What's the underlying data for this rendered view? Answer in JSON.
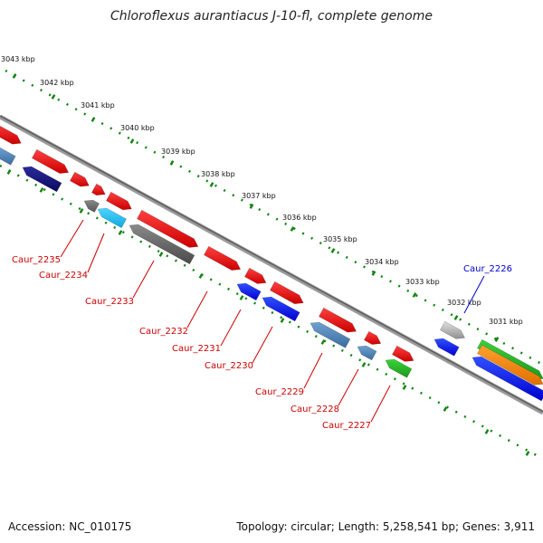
{
  "title": "Chloroflexus aurantiacus J-10-fl, complete genome",
  "footer": {
    "accession": "Accession: NC_010175",
    "topology": "Topology: circular; Length: 5,258,541 bp; Genes: 3,911"
  },
  "colors": {
    "backbone": "#7a7a7a",
    "tick": "#128512",
    "red_label": "#cc0000",
    "blue_label": "#0000cc"
  },
  "scale_labels": [
    "3043 kbp",
    "3042 kbp",
    "3041 kbp",
    "3040 kbp",
    "3039 kbp",
    "3038 kbp",
    "3037 kbp",
    "3036 kbp",
    "3035 kbp",
    "3034 kbp",
    "3033 kbp",
    "3032 kbp",
    "3031 kbp"
  ],
  "gene_labels": [
    {
      "text": "Caur_2235",
      "color": "#cc0000"
    },
    {
      "text": "Caur_2234",
      "color": "#cc0000"
    },
    {
      "text": "Caur_2233",
      "color": "#cc0000"
    },
    {
      "text": "Caur_2232",
      "color": "#cc0000"
    },
    {
      "text": "Caur_2231",
      "color": "#cc0000"
    },
    {
      "text": "Caur_2230",
      "color": "#cc0000"
    },
    {
      "text": "Caur_2229",
      "color": "#cc0000"
    },
    {
      "text": "Caur_2228",
      "color": "#cc0000"
    },
    {
      "text": "Caur_2227",
      "color": "#cc0000"
    },
    {
      "text": "Caur_2226",
      "color": "#0000cc"
    }
  ]
}
